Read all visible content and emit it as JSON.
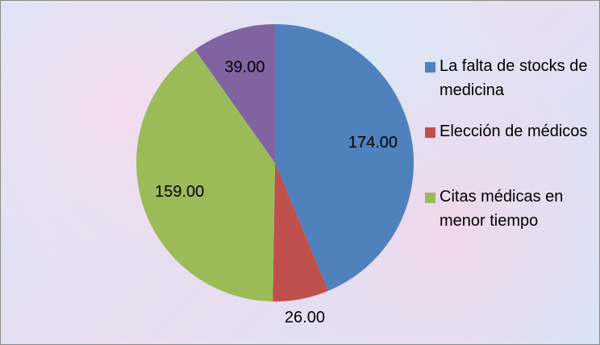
{
  "chart_data": {
    "type": "pie",
    "categories": [
      "La falta de stocks de medicina",
      "Elección de médicos",
      "Citas médicas en menor tiempo",
      null
    ],
    "values": [
      174,
      26,
      159,
      39
    ],
    "value_labels": [
      "174.00",
      "26.00",
      "159.00",
      "39.00"
    ],
    "colors": [
      "#4f81bd",
      "#c0504d",
      "#9bbb59",
      "#8064a2"
    ],
    "legend": "right"
  }
}
